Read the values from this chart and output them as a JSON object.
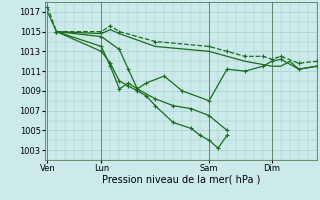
{
  "background_color": "#cceaea",
  "grid_color": "#99cccc",
  "line_color": "#1a6b1a",
  "marker_color": "#1a6b1a",
  "xlabel": "Pression niveau de la mer( hPa )",
  "ylim": [
    1002.0,
    1018.0
  ],
  "yticks": [
    1003,
    1005,
    1007,
    1009,
    1011,
    1013,
    1015,
    1017
  ],
  "xtick_labels": [
    "Ven",
    "Lun",
    "Sam",
    "Dim"
  ],
  "xtick_positions": [
    0,
    6,
    18,
    25
  ],
  "xlim": [
    -0.3,
    30
  ],
  "vlines": [
    0,
    6,
    18,
    25
  ],
  "series": [
    {
      "x": [
        0,
        1,
        6,
        7,
        8,
        12,
        18,
        20,
        22,
        24,
        25,
        26,
        28,
        30
      ],
      "y": [
        1017.5,
        1015.0,
        1015.0,
        1015.6,
        1015.0,
        1014.0,
        1013.5,
        1013.0,
        1012.5,
        1012.5,
        1012.2,
        1012.5,
        1011.8,
        1012.0
      ],
      "style": "--",
      "lw": 0.9
    },
    {
      "x": [
        0,
        1,
        6,
        7,
        8,
        12,
        18,
        20,
        22,
        25,
        26,
        27,
        28,
        30
      ],
      "y": [
        1017.0,
        1015.0,
        1014.8,
        1015.2,
        1014.8,
        1013.5,
        1013.0,
        1012.5,
        1012.0,
        1011.5,
        1011.5,
        1012.0,
        1011.2,
        1011.5
      ],
      "style": "-",
      "lw": 0.9
    },
    {
      "x": [
        1,
        6,
        8,
        9,
        10,
        11,
        13,
        15,
        18,
        20,
        22,
        24,
        25,
        26,
        28,
        30
      ],
      "y": [
        1015.0,
        1014.5,
        1013.2,
        1011.2,
        1009.2,
        1009.8,
        1010.5,
        1009.0,
        1008.0,
        1011.2,
        1011.0,
        1011.5,
        1012.0,
        1012.2,
        1011.2,
        1011.5
      ],
      "style": "-",
      "lw": 0.9
    },
    {
      "x": [
        1,
        6,
        7,
        8,
        9,
        10,
        12,
        14,
        16,
        18,
        20
      ],
      "y": [
        1015.0,
        1013.5,
        1011.5,
        1009.2,
        1009.8,
        1009.2,
        1008.2,
        1007.5,
        1007.2,
        1006.5,
        1005.0
      ],
      "style": "-",
      "lw": 0.9
    },
    {
      "x": [
        1,
        6,
        7,
        8,
        9,
        10,
        11,
        12,
        14,
        16,
        17,
        18,
        19,
        20
      ],
      "y": [
        1015.0,
        1013.0,
        1011.8,
        1010.0,
        1009.5,
        1009.0,
        1008.5,
        1007.5,
        1005.8,
        1005.2,
        1004.5,
        1004.0,
        1003.2,
        1004.5
      ],
      "style": "-",
      "lw": 0.9
    }
  ],
  "marker_series": [
    {
      "x": [
        0,
        1,
        6,
        7,
        8,
        12,
        18,
        20,
        22,
        24,
        25,
        26,
        28,
        30
      ],
      "y": [
        1017.5,
        1015.0,
        1015.0,
        1015.6,
        1015.0,
        1014.0,
        1013.5,
        1013.0,
        1012.5,
        1012.5,
        1012.2,
        1012.5,
        1011.8,
        1012.0
      ]
    },
    {
      "x": [
        1,
        6,
        8,
        9,
        10,
        11,
        13,
        15,
        18,
        20,
        22,
        24,
        25,
        26,
        28,
        30
      ],
      "y": [
        1015.0,
        1014.5,
        1013.2,
        1011.2,
        1009.2,
        1009.8,
        1010.5,
        1009.0,
        1008.0,
        1011.2,
        1011.0,
        1011.5,
        1012.0,
        1012.2,
        1011.2,
        1011.5
      ]
    },
    {
      "x": [
        1,
        6,
        7,
        8,
        9,
        10,
        12,
        14,
        16,
        18,
        20
      ],
      "y": [
        1015.0,
        1013.5,
        1011.5,
        1009.2,
        1009.8,
        1009.2,
        1008.2,
        1007.5,
        1007.2,
        1006.5,
        1005.0
      ]
    },
    {
      "x": [
        1,
        6,
        7,
        8,
        9,
        10,
        11,
        12,
        14,
        16,
        17,
        18,
        19,
        20
      ],
      "y": [
        1015.0,
        1013.0,
        1011.8,
        1010.0,
        1009.5,
        1009.0,
        1008.5,
        1007.5,
        1005.8,
        1005.2,
        1004.5,
        1004.0,
        1003.2,
        1004.5
      ]
    }
  ],
  "xlabel_fontsize": 7,
  "ytick_fontsize": 6,
  "xtick_fontsize": 6
}
